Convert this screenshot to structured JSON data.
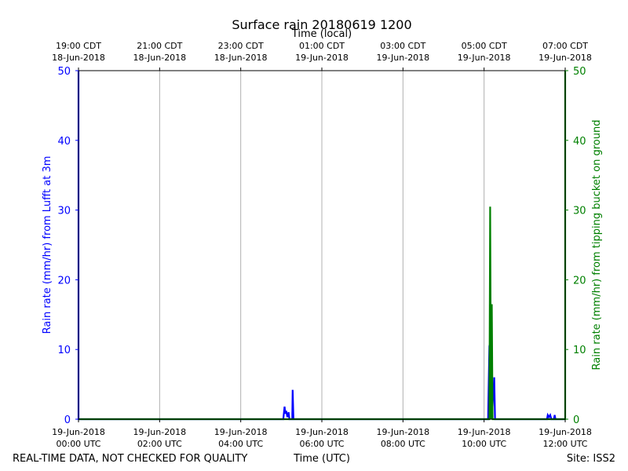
{
  "chart_data": {
    "type": "line",
    "title": "Surface rain 20180619 1200",
    "top_xlabel": "Time (local)",
    "xlabel": "Time (UTC)",
    "ylabel_left": "Rain rate (mm/hr) from Lufft at 3m",
    "ylabel_right": "Rain rate (mm/hr) from tipping bucket on ground",
    "footer_left": "REAL-TIME DATA, NOT CHECKED FOR QUALITY",
    "footer_right": "Site: ISS2",
    "xlim_hours_utc": [
      0,
      12
    ],
    "ylim_left": [
      0,
      50
    ],
    "ylim_right": [
      0,
      50
    ],
    "y_ticks": [
      0,
      10,
      20,
      30,
      40,
      50
    ],
    "grid": "vertical",
    "x_ticks_bottom": [
      {
        "hour": 0,
        "date": "19-Jun-2018",
        "time": "00:00 UTC"
      },
      {
        "hour": 2,
        "date": "19-Jun-2018",
        "time": "02:00 UTC"
      },
      {
        "hour": 4,
        "date": "19-Jun-2018",
        "time": "04:00 UTC"
      },
      {
        "hour": 6,
        "date": "19-Jun-2018",
        "time": "06:00 UTC"
      },
      {
        "hour": 8,
        "date": "19-Jun-2018",
        "time": "08:00 UTC"
      },
      {
        "hour": 10,
        "date": "19-Jun-2018",
        "time": "10:00 UTC"
      },
      {
        "hour": 12,
        "date": "19-Jun-2018",
        "time": "12:00 UTC"
      }
    ],
    "x_ticks_top": [
      {
        "hour": 0,
        "time": "19:00 CDT",
        "date": "18-Jun-2018"
      },
      {
        "hour": 2,
        "time": "21:00 CDT",
        "date": "18-Jun-2018"
      },
      {
        "hour": 4,
        "time": "23:00 CDT",
        "date": "18-Jun-2018"
      },
      {
        "hour": 6,
        "time": "01:00 CDT",
        "date": "19-Jun-2018"
      },
      {
        "hour": 8,
        "time": "03:00 CDT",
        "date": "19-Jun-2018"
      },
      {
        "hour": 10,
        "time": "05:00 CDT",
        "date": "19-Jun-2018"
      },
      {
        "hour": 12,
        "time": "07:00 CDT",
        "date": "19-Jun-2018"
      }
    ],
    "colors": {
      "left": "#0000ff",
      "right": "#008000",
      "grid": "#b0b0b0"
    },
    "series": [
      {
        "axis": "left",
        "color": "#0000ff",
        "points": [
          [
            0.0,
            50
          ],
          [
            0.0,
            0
          ],
          [
            5.05,
            0
          ],
          [
            5.08,
            1.8
          ],
          [
            5.1,
            0.8
          ],
          [
            5.12,
            1.2
          ],
          [
            5.15,
            0.3
          ],
          [
            5.18,
            1.0
          ],
          [
            5.2,
            0
          ],
          [
            5.27,
            0
          ],
          [
            5.28,
            4.2
          ],
          [
            5.3,
            0
          ],
          [
            10.1,
            0
          ],
          [
            10.13,
            10.5
          ],
          [
            10.16,
            11
          ],
          [
            10.19,
            0
          ],
          [
            10.25,
            6
          ],
          [
            10.27,
            0
          ],
          [
            11.55,
            0
          ],
          [
            11.57,
            0.6
          ],
          [
            11.6,
            0.3
          ],
          [
            11.63,
            0.6
          ],
          [
            11.66,
            0
          ],
          [
            11.72,
            0
          ],
          [
            11.74,
            0.6
          ],
          [
            11.76,
            0
          ],
          [
            12.0,
            0
          ]
        ]
      },
      {
        "axis": "right",
        "color": "#008000",
        "points": [
          [
            0.0,
            0
          ],
          [
            10.13,
            0
          ],
          [
            10.15,
            30.5
          ],
          [
            10.17,
            0
          ],
          [
            10.19,
            16.5
          ],
          [
            10.21,
            0
          ],
          [
            12.0,
            0
          ],
          [
            12.0,
            50
          ]
        ]
      }
    ]
  }
}
